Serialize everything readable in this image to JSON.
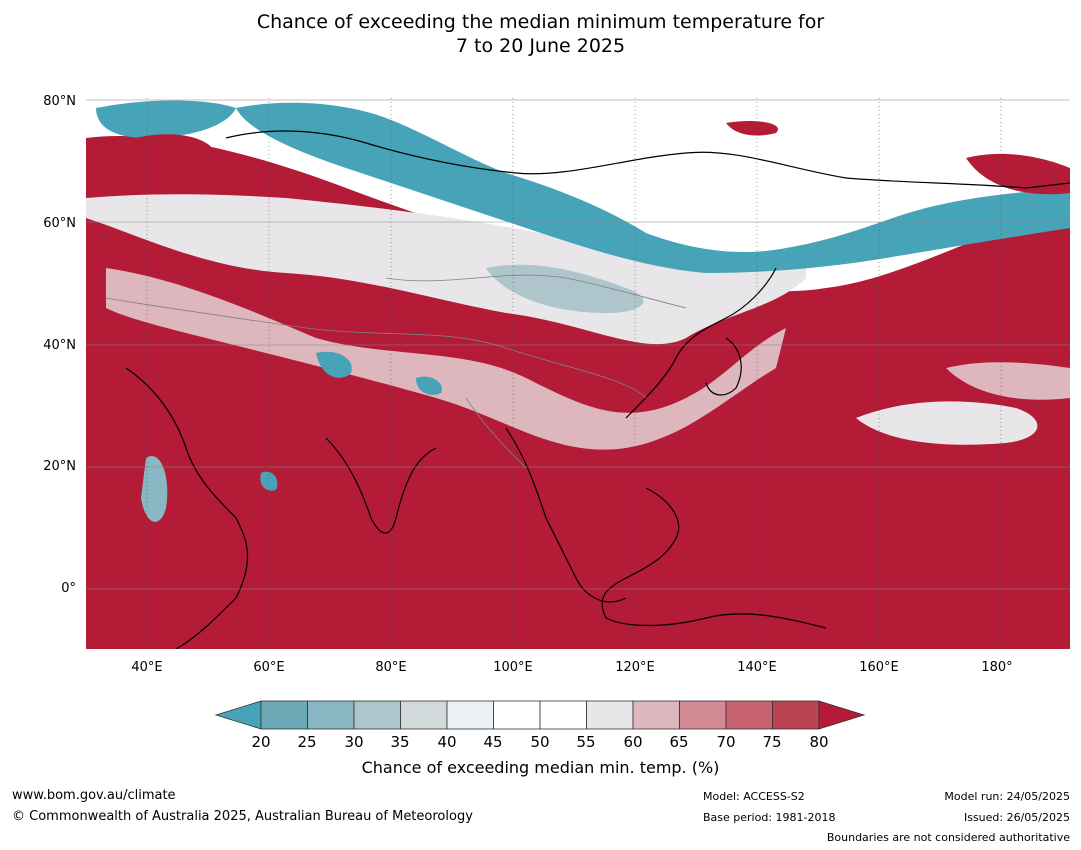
{
  "title": {
    "line1": "Chance of exceeding the median minimum temperature for",
    "line2": "7 to 20 June 2025"
  },
  "map": {
    "lat_labels": [
      "80°N",
      "60°N",
      "40°N",
      "20°N",
      "0°"
    ],
    "lon_labels": [
      "40°E",
      "60°E",
      "80°E",
      "100°E",
      "120°E",
      "140°E",
      "160°E",
      "180°"
    ],
    "colors": {
      "ocean_warm": "#b31b37",
      "below_strong": "#46a3b8",
      "near_median": "#ffffff",
      "coastline": "#000000",
      "borders": "#808080"
    }
  },
  "legend": {
    "ticks": [
      "20",
      "25",
      "30",
      "35",
      "40",
      "45",
      "50",
      "55",
      "60",
      "65",
      "70",
      "75",
      "80"
    ],
    "colors": [
      "#46a3b8",
      "#6ba9b6",
      "#89b7c3",
      "#aec5cc",
      "#d2d9db",
      "#eaf0f3",
      "#ffffff",
      "#ffffff",
      "#e8e6e8",
      "#deb6be",
      "#d38b96",
      "#c6636f",
      "#bb4452",
      "#b31b37"
    ],
    "label": "Chance of exceeding median min. temp. (%)"
  },
  "footer": {
    "website": "www.bom.gov.au/climate",
    "copyright": "© Commonwealth of Australia 2025, Australian Bureau of Meteorology",
    "model": "Model: ACCESS-S2",
    "base_period": "Base period: 1981-2018",
    "model_run": "Model run: 24/05/2025",
    "issued": "Issued: 26/05/2025",
    "disclaimer": "Boundaries are not considered authoritative"
  }
}
